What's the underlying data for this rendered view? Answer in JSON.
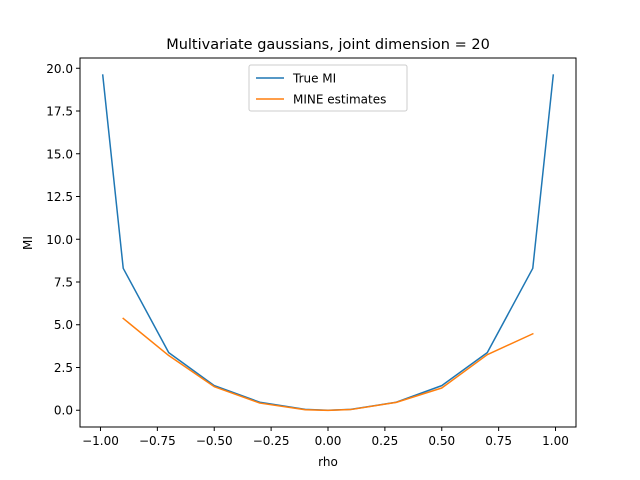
{
  "chart_data": {
    "type": "line",
    "title": "Multivariate gaussians, joint dimension = 20",
    "xlabel": "rho",
    "ylabel": "MI",
    "xlim": [
      -1.09,
      1.09
    ],
    "ylim": [
      -0.98,
      20.6
    ],
    "xticks": [
      -1.0,
      -0.75,
      -0.5,
      -0.25,
      0.0,
      0.25,
      0.5,
      0.75,
      1.0
    ],
    "xtick_labels": [
      "−1.00",
      "−0.75",
      "−0.50",
      "−0.25",
      "0.00",
      "0.25",
      "0.50",
      "0.75",
      "1.00"
    ],
    "yticks": [
      0.0,
      2.5,
      5.0,
      7.5,
      10.0,
      12.5,
      15.0,
      17.5,
      20.0
    ],
    "ytick_labels": [
      "0.0",
      "2.5",
      "5.0",
      "7.5",
      "10.0",
      "12.5",
      "15.0",
      "17.5",
      "20.0"
    ],
    "grid": false,
    "legend_position": "top-center",
    "series": [
      {
        "name": "True MI",
        "color": "#1f77b4",
        "x": [
          -0.99,
          -0.9,
          -0.7,
          -0.5,
          -0.3,
          -0.1,
          0.0,
          0.1,
          0.3,
          0.5,
          0.7,
          0.9,
          0.99
        ],
        "y": [
          19.6,
          8.3,
          3.37,
          1.44,
          0.47,
          0.05,
          0.0,
          0.05,
          0.47,
          1.44,
          3.37,
          8.3,
          19.6
        ]
      },
      {
        "name": "MINE estimates",
        "color": "#ff7f0e",
        "x": [
          -0.9,
          -0.7,
          -0.5,
          -0.3,
          -0.1,
          0.0,
          0.1,
          0.3,
          0.5,
          0.7,
          0.9
        ],
        "y": [
          5.37,
          3.2,
          1.38,
          0.42,
          0.03,
          -0.01,
          0.04,
          0.46,
          1.3,
          3.25,
          4.47
        ]
      }
    ]
  }
}
